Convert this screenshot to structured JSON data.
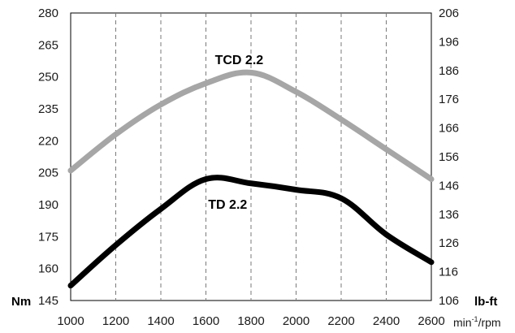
{
  "chart_data": {
    "type": "line",
    "x": [
      1000,
      1200,
      1400,
      1600,
      1800,
      2000,
      2200,
      2400,
      2600
    ],
    "xlim": [
      1000,
      2600
    ],
    "x_ticks": [
      "1000",
      "1200",
      "1400",
      "1600",
      "1800",
      "2000",
      "2200",
      "2400",
      "2600"
    ],
    "x_unit": {
      "base": "min",
      "sup": "-1",
      "rest": "/rpm"
    },
    "ylim_left": [
      145,
      280
    ],
    "y_ticks_left": [
      "145",
      "160",
      "175",
      "190",
      "205",
      "220",
      "235",
      "250",
      "265",
      "280"
    ],
    "ylabel_left": "Nm",
    "ylim_right": [
      106,
      206
    ],
    "y_ticks_right": [
      "106",
      "116",
      "126",
      "136",
      "146",
      "156",
      "166",
      "176",
      "186",
      "196",
      "206"
    ],
    "ylabel_right": "lb-ft",
    "grid": {
      "vertical": "dashed",
      "horizontal": "none"
    },
    "series": [
      {
        "name": "TCD 2.2",
        "color": "#a6a6a6",
        "x": [
          1000,
          1200,
          1400,
          1600,
          1800,
          2000,
          2200,
          2400,
          2600
        ],
        "values": [
          206,
          223,
          237,
          247,
          252,
          243,
          230,
          216,
          202
        ]
      },
      {
        "name": "TD 2.2",
        "color": "#000000",
        "x": [
          1000,
          1200,
          1400,
          1600,
          1800,
          2000,
          2200,
          2400,
          2600
        ],
        "values": [
          152,
          171,
          188,
          202,
          200,
          197,
          193,
          176,
          163
        ]
      }
    ]
  }
}
